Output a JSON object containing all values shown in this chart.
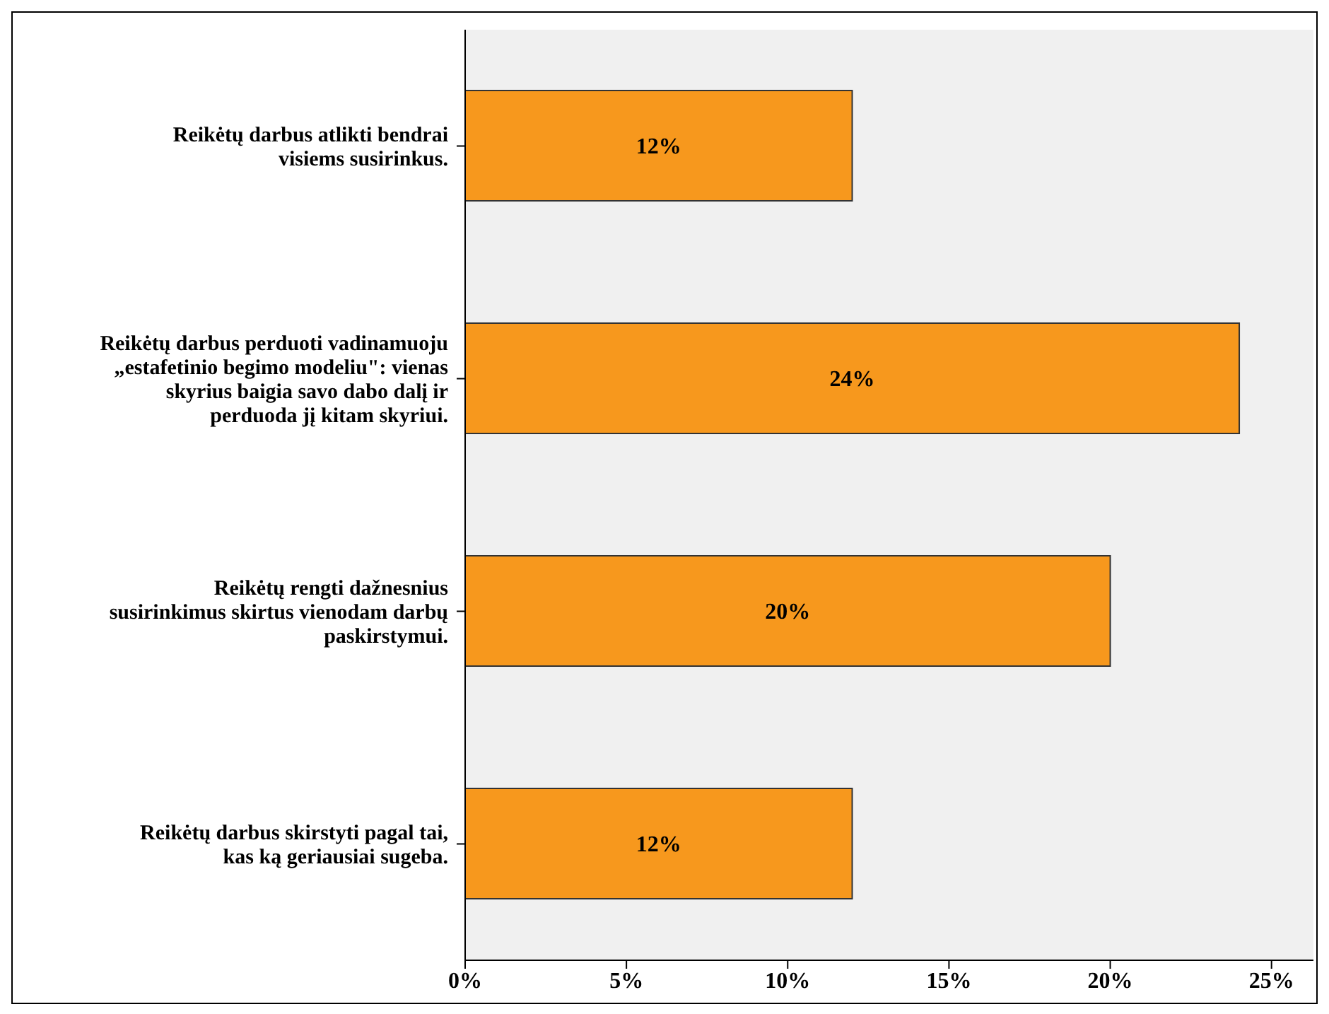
{
  "chart_data": {
    "type": "bar",
    "orientation": "horizontal",
    "categories": [
      "Reikėtų darbus atlikti bendrai visiems susirinkus.",
      "Reikėtų darbus perduoti vadinamuoju „estafetinio begimo modeliu\": vienas skyrius baigia savo dabo dalį ir perduoda jį kitam skyriui.",
      "Reikėtų rengti dažnesnius susirinkimus skirtus vienodam darbų paskirstymui.",
      "Reikėtų darbus skirstyti pagal tai, kas ką geriausiai sugeba."
    ],
    "values": [
      12,
      24,
      20,
      12
    ],
    "value_labels": [
      "12%",
      "24%",
      "20%",
      "12%"
    ],
    "color": "#f7981d",
    "xlim": [
      0,
      26.3
    ],
    "xticks": [
      {
        "value": 0,
        "label": "0%"
      },
      {
        "value": 5,
        "label": "5%"
      },
      {
        "value": 10,
        "label": "10%"
      },
      {
        "value": 15,
        "label": "15%"
      },
      {
        "value": 20,
        "label": "20%"
      },
      {
        "value": 25,
        "label": "25%"
      }
    ],
    "grid": false,
    "legend": false
  }
}
